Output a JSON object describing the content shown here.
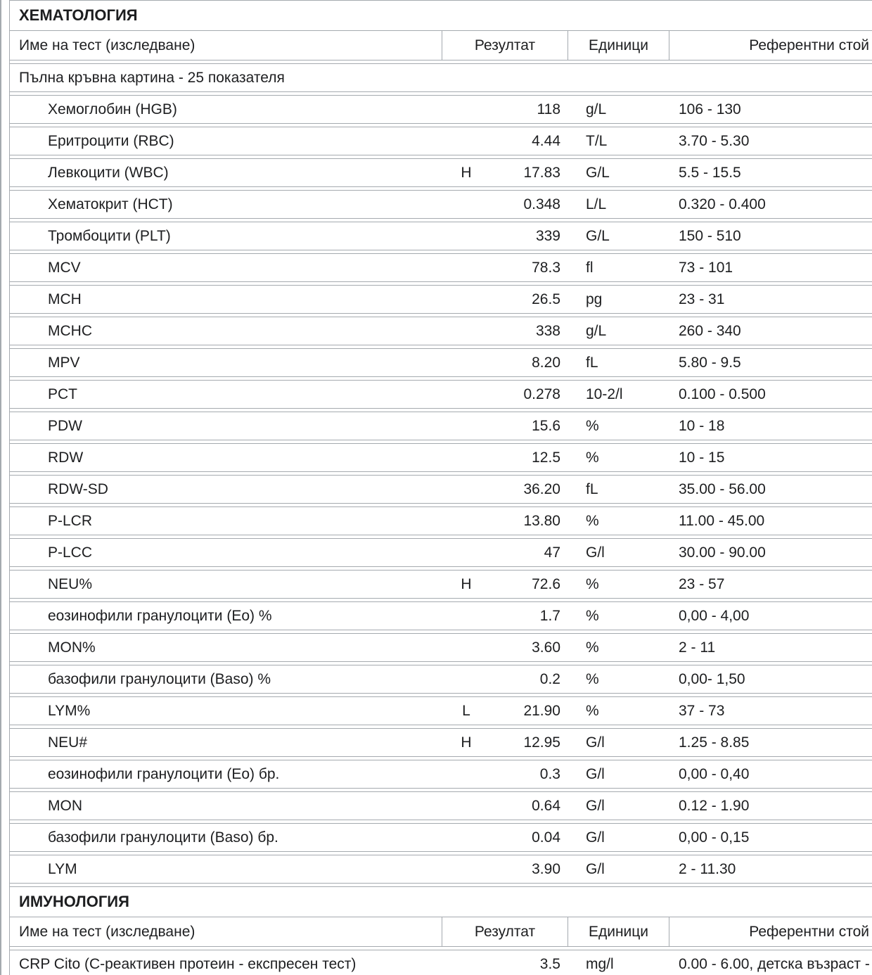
{
  "colors": {
    "border": "#a5aaaf",
    "text": "#1d1e20",
    "background": "#ffffff"
  },
  "sections": [
    {
      "title": "ХЕМАТОЛОГИЯ",
      "header": {
        "name": "Име на тест (изследване)",
        "result": "Резултат",
        "units": "Единици",
        "reference": "Референтни стой"
      },
      "rows": [
        {
          "name": "Пълна кръвна картина - 25 показателя",
          "indent": false,
          "flag": "",
          "result": "",
          "units": "",
          "reference": ""
        },
        {
          "name": "Хемоглобин (HGB)",
          "indent": true,
          "flag": "",
          "result": "118",
          "units": "g/L",
          "reference": "106 - 130"
        },
        {
          "name": "Еритроцити (RBC)",
          "indent": true,
          "flag": "",
          "result": "4.44",
          "units": "T/L",
          "reference": "3.70 - 5.30"
        },
        {
          "name": "Левкоцити (WBC)",
          "indent": true,
          "flag": "H",
          "result": "17.83",
          "units": "G/L",
          "reference": "5.5 - 15.5"
        },
        {
          "name": "Хематокрит (HCT)",
          "indent": true,
          "flag": "",
          "result": "0.348",
          "units": "L/L",
          "reference": "0.320 - 0.400"
        },
        {
          "name": "Тромбоцити (PLT)",
          "indent": true,
          "flag": "",
          "result": "339",
          "units": "G/L",
          "reference": "150 - 510"
        },
        {
          "name": "MCV",
          "indent": true,
          "flag": "",
          "result": "78.3",
          "units": "fl",
          "reference": "73 - 101"
        },
        {
          "name": "MCH",
          "indent": true,
          "flag": "",
          "result": "26.5",
          "units": "pg",
          "reference": "23 - 31"
        },
        {
          "name": "MCHC",
          "indent": true,
          "flag": "",
          "result": "338",
          "units": "g/L",
          "reference": "260 - 340"
        },
        {
          "name": "MPV",
          "indent": true,
          "flag": "",
          "result": "8.20",
          "units": "fL",
          "reference": "5.80 - 9.5"
        },
        {
          "name": "PCT",
          "indent": true,
          "flag": "",
          "result": "0.278",
          "units": "10-2/l",
          "reference": "0.100 - 0.500"
        },
        {
          "name": "PDW",
          "indent": true,
          "flag": "",
          "result": "15.6",
          "units": "%",
          "reference": "10 - 18"
        },
        {
          "name": "RDW",
          "indent": true,
          "flag": "",
          "result": "12.5",
          "units": "%",
          "reference": "10 - 15"
        },
        {
          "name": "RDW-SD",
          "indent": true,
          "flag": "",
          "result": "36.20",
          "units": "fL",
          "reference": "35.00 - 56.00"
        },
        {
          "name": "P-LCR",
          "indent": true,
          "flag": "",
          "result": "13.80",
          "units": "%",
          "reference": "11.00 - 45.00"
        },
        {
          "name": "P-LCC",
          "indent": true,
          "flag": "",
          "result": "47",
          "units": "G/l",
          "reference": "30.00 - 90.00"
        },
        {
          "name": "NEU%",
          "indent": true,
          "flag": "H",
          "result": "72.6",
          "units": "%",
          "reference": "23 - 57"
        },
        {
          "name": "еозинофили гранулоцити (Eo) %",
          "indent": true,
          "flag": "",
          "result": "1.7",
          "units": "%",
          "reference": "0,00 - 4,00"
        },
        {
          "name": "MON%",
          "indent": true,
          "flag": "",
          "result": "3.60",
          "units": "%",
          "reference": "2 - 11"
        },
        {
          "name": "базофили гранулоцити (Baso) %",
          "indent": true,
          "flag": "",
          "result": "0.2",
          "units": "%",
          "reference": "0,00- 1,50"
        },
        {
          "name": "LYM%",
          "indent": true,
          "flag": "L",
          "result": "21.90",
          "units": "%",
          "reference": "37 - 73"
        },
        {
          "name": "NEU#",
          "indent": true,
          "flag": "H",
          "result": "12.95",
          "units": "G/l",
          "reference": "1.25 - 8.85"
        },
        {
          "name": "еозинофили гранулоцити (Eo) бр.",
          "indent": true,
          "flag": "",
          "result": "0.3",
          "units": "G/l",
          "reference": "0,00 - 0,40"
        },
        {
          "name": "MON",
          "indent": true,
          "flag": "",
          "result": "0.64",
          "units": "G/l",
          "reference": "0.12 - 1.90"
        },
        {
          "name": "базофили гранулоцити (Baso) бр.",
          "indent": true,
          "flag": "",
          "result": "0.04",
          "units": "G/l",
          "reference": "0,00 - 0,15"
        },
        {
          "name": "LYM",
          "indent": true,
          "flag": "",
          "result": "3.90",
          "units": "G/l",
          "reference": "2 - 11.30"
        }
      ]
    },
    {
      "title": "ИМУНОЛОГИЯ",
      "header": {
        "name": "Име на тест (изследване)",
        "result": "Резултат",
        "units": "Единици",
        "reference": "Референтни стой"
      },
      "rows": [
        {
          "name": "CRP Cito (C-реактивен протеин - експресен тест)",
          "indent": false,
          "flag": "",
          "result": "3.5",
          "units": "mg/l",
          "reference": "0.00 - 6.00, детска възраст -"
        }
      ]
    }
  ]
}
